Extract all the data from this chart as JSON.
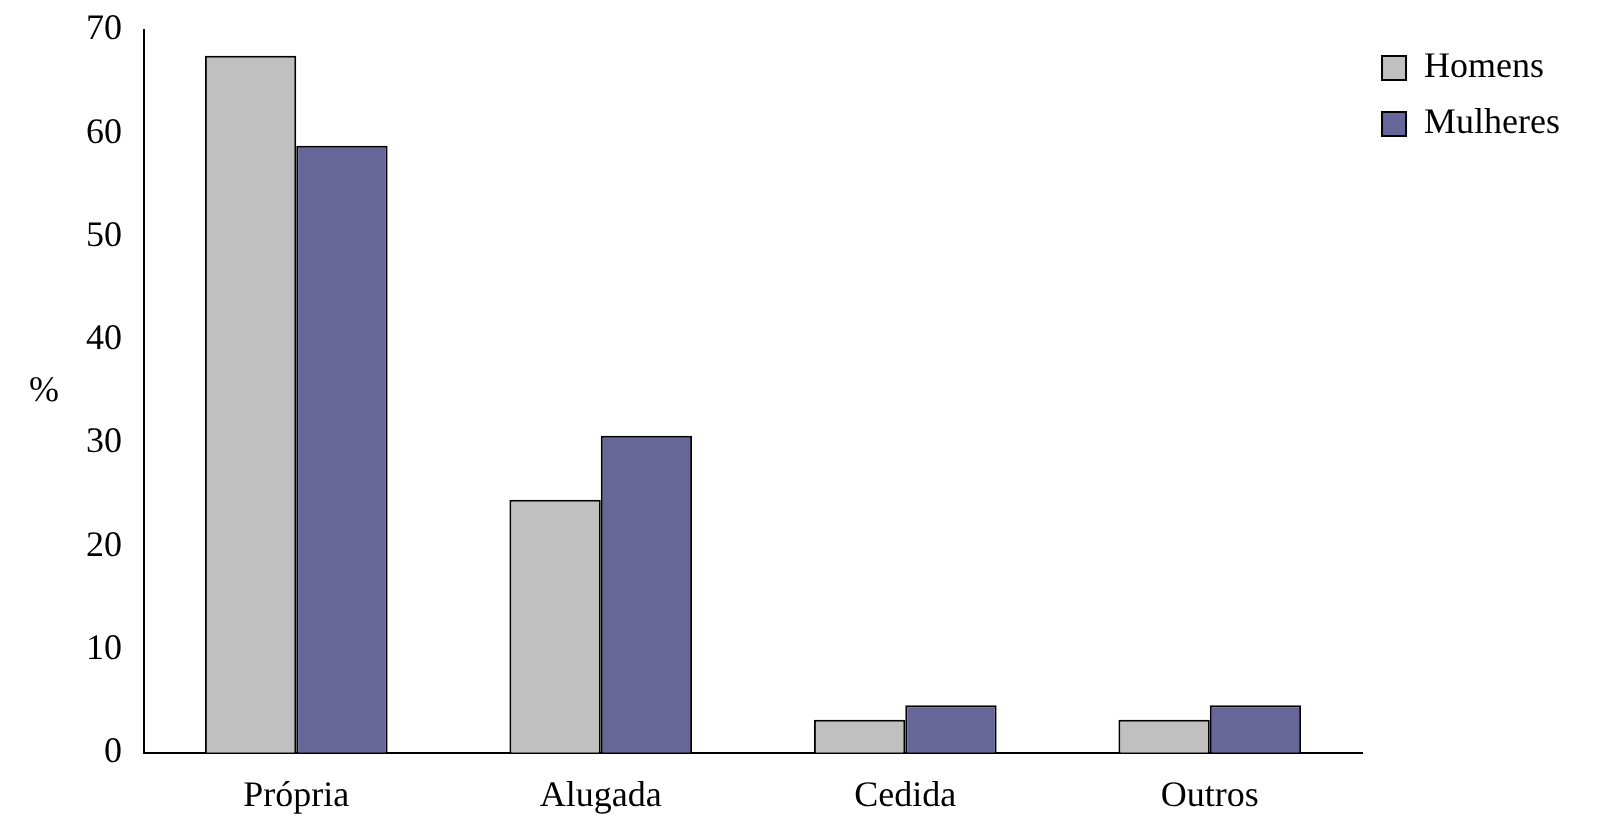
{
  "chart_data": {
    "type": "bar",
    "ylabel": "%",
    "categories": [
      "Própria",
      "Alugada",
      "Cedida",
      "Outros"
    ],
    "series": [
      {
        "name": "Homens",
        "color": "#c0c0c0",
        "values": [
          67.5,
          24.5,
          3.2,
          3.2
        ]
      },
      {
        "name": "Mulheres",
        "color": "#666699",
        "values": [
          58.8,
          30.7,
          4.6,
          4.6
        ]
      }
    ],
    "ylim": [
      0,
      70
    ],
    "yticks": [
      0,
      10,
      20,
      30,
      40,
      50,
      60,
      70
    ],
    "grid": false,
    "legend": "top right"
  }
}
